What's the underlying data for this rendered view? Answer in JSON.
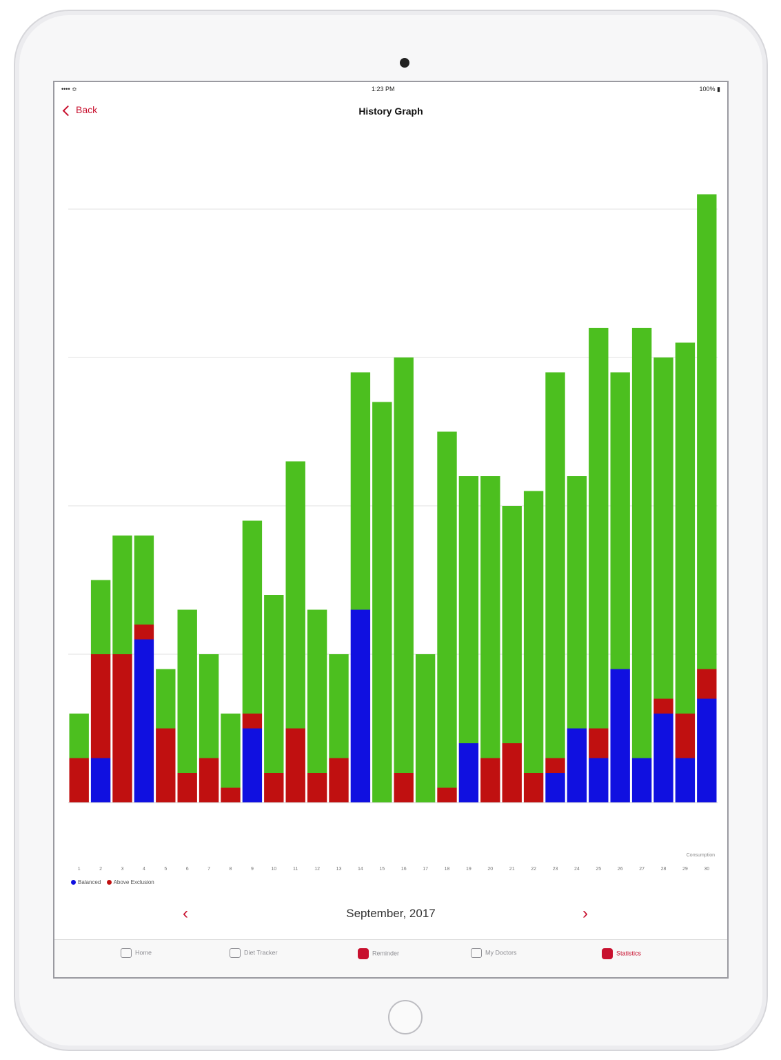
{
  "status": {
    "carrier": "•••• ≎",
    "time": "1:23 PM",
    "battery": "100% ▮"
  },
  "nav": {
    "back_label": "Back",
    "title": "History Graph"
  },
  "colors": {
    "green": "#4cbf1f",
    "red": "#c01010",
    "blue": "#1010e0",
    "accent": "#c8102e"
  },
  "legend": [
    {
      "label": "Balanced",
      "color": "#1010e0"
    },
    {
      "label": "Above Exclusion",
      "color": "#c01010"
    }
  ],
  "pager": {
    "prev": "‹",
    "label": "September, 2017",
    "next": "›"
  },
  "tabs": [
    {
      "label": "Home",
      "icon": "home-icon"
    },
    {
      "label": "Diet Tracker",
      "icon": "diet-tracker-icon"
    },
    {
      "label": "Reminder",
      "icon": "reminder-icon"
    },
    {
      "label": "My Doctors",
      "icon": "doctors-icon"
    },
    {
      "label": "Statistics",
      "icon": "statistics-icon",
      "active": true
    }
  ],
  "chart_data": {
    "type": "bar",
    "stacked": true,
    "ylim": [
      0,
      4
    ],
    "grid": true,
    "legend_position": "bottom-left",
    "categories": [
      "1",
      "2",
      "3",
      "4",
      "5",
      "6",
      "7",
      "8",
      "9",
      "10",
      "11",
      "12",
      "13",
      "14",
      "15",
      "16",
      "17",
      "18",
      "19",
      "20",
      "21",
      "22",
      "23",
      "24",
      "25",
      "26",
      "27",
      "28",
      "29",
      "30"
    ],
    "series": [
      {
        "name": "Balanced",
        "color": "#1010e0",
        "values": [
          0,
          0.3,
          0,
          1.1,
          0,
          0,
          0,
          0,
          0.5,
          0,
          0,
          0,
          0,
          1.3,
          0,
          0,
          0,
          0,
          0.4,
          0,
          0,
          0,
          0.2,
          0.5,
          0.3,
          0.9,
          0.3,
          0.6,
          0.3,
          0.7
        ]
      },
      {
        "name": "Above Exclusion",
        "color": "#c01010",
        "values": [
          0.3,
          0.7,
          1.0,
          0.1,
          0.5,
          0.2,
          0.3,
          0.1,
          0.1,
          0.2,
          0.5,
          0.2,
          0.3,
          0,
          0,
          0.2,
          0,
          0.1,
          0,
          0.3,
          0.4,
          0.2,
          0.1,
          0,
          0.2,
          0,
          0,
          0.1,
          0.3,
          0.2
        ]
      },
      {
        "name": "",
        "color": "#4cbf1f",
        "values": [
          0.3,
          0.5,
          0.8,
          0.6,
          0.4,
          1.1,
          0.7,
          0.5,
          1.3,
          1.2,
          1.8,
          1.1,
          0.7,
          1.6,
          2.7,
          2.8,
          1.0,
          2.4,
          1.8,
          1.9,
          1.6,
          1.9,
          2.6,
          1.7,
          2.7,
          2.0,
          2.9,
          2.3,
          2.5,
          3.2
        ]
      }
    ],
    "x_tick_labels": [
      "1",
      "2",
      "3",
      "4",
      "5",
      "6",
      "7",
      "8",
      "9",
      "10",
      "11",
      "12",
      "13",
      "14",
      "15",
      "16",
      "17",
      "18",
      "19",
      "20",
      "21",
      "22",
      "23",
      "24",
      "25",
      "26",
      "27",
      "28",
      "29",
      "30"
    ],
    "corner_note": "Consumption"
  }
}
